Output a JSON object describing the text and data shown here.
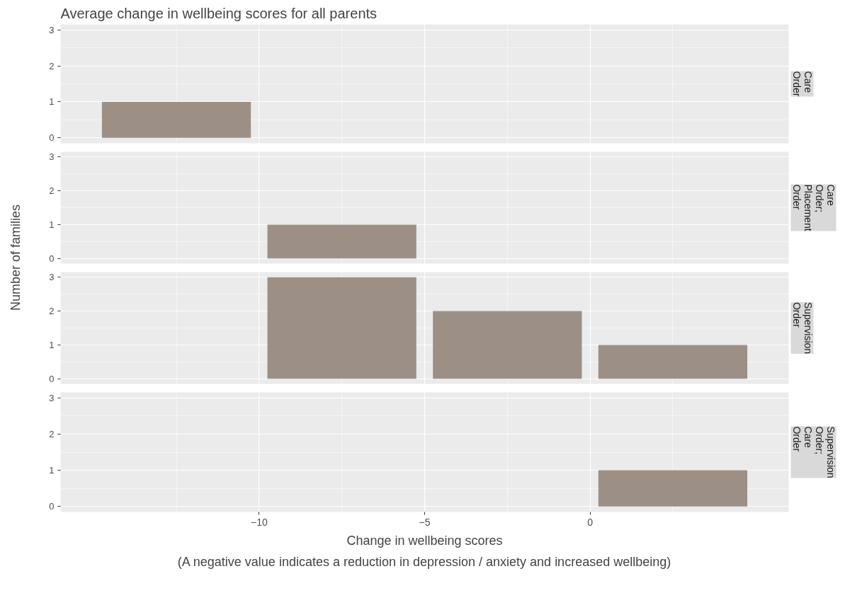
{
  "chart_data": [
    {
      "type": "histogram",
      "title": "Average change in wellbeing scores for all parents",
      "subtitle": "Care Order",
      "ylabel": "Number of families",
      "bins": [
        -15,
        -10,
        -5,
        0,
        5
      ],
      "values": [
        1,
        0,
        0,
        0
      ],
      "color": "#9c9086",
      "xlim": [
        -16,
        6
      ],
      "xticks": [
        -10,
        -5,
        0
      ],
      "ylim": [
        -0.15,
        3.15
      ],
      "yticks": [
        0,
        1,
        2,
        3
      ],
      "grid": true,
      "tick_labels": "y"
    },
    {
      "type": "histogram",
      "subtitle": "Care Order; Placement Order",
      "bins": [
        -15,
        -10,
        -5,
        0,
        5
      ],
      "values": [
        0,
        1,
        0,
        0
      ],
      "color": "#9c9086",
      "xlim": [
        -16,
        6
      ],
      "xticks": [
        -10,
        -5,
        0
      ],
      "ylim": [
        -0.15,
        3.15
      ],
      "yticks": [
        0,
        1,
        2,
        3
      ],
      "grid": true,
      "tick_labels": "y"
    },
    {
      "type": "histogram",
      "subtitle": "Supervision Order",
      "bins": [
        -15,
        -10,
        -5,
        0,
        5
      ],
      "values": [
        0,
        3,
        2,
        1
      ],
      "color": "#9c9086",
      "xlim": [
        -16,
        6
      ],
      "xticks": [
        -10,
        -5,
        0
      ],
      "ylim": [
        -0.15,
        3.15
      ],
      "yticks": [
        0,
        1,
        2,
        3
      ],
      "grid": true,
      "tick_labels": "y"
    },
    {
      "type": "histogram",
      "subtitle": "Supervision Order; Care Order",
      "xlabel": "Change in wellbeing scores",
      "annotations": [
        "(A negative value indicates a reduction in depression / anxiety and increased wellbeing)"
      ],
      "bins": [
        -15,
        -10,
        -5,
        0,
        5
      ],
      "values": [
        0,
        0,
        0,
        1
      ],
      "color": "#9c9086",
      "xlim": [
        -16,
        6
      ],
      "xticks": [
        -10,
        -5,
        0
      ],
      "ylim": [
        -0.15,
        3.15
      ],
      "yticks": [
        0,
        1,
        2,
        3
      ],
      "grid": true
    }
  ]
}
